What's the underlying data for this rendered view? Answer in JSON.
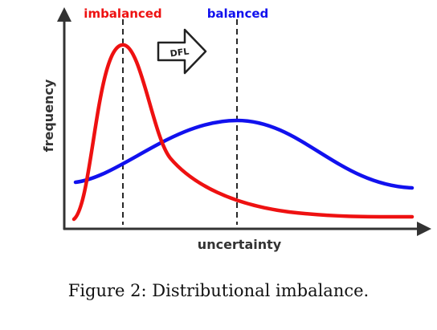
{
  "chart_data": {
    "type": "line",
    "xlabel": "uncertainty",
    "ylabel": "frequency",
    "annotations": {
      "imbalanced": "imbalanced",
      "balanced": "balanced",
      "arrow": "DFL"
    },
    "series": [
      {
        "name": "imbalanced",
        "color": "#ee1111"
      },
      {
        "name": "balanced",
        "color": "#1111ee"
      }
    ],
    "grid": false,
    "legend": "none"
  },
  "caption": "Figure 2: Distributional imbalance."
}
